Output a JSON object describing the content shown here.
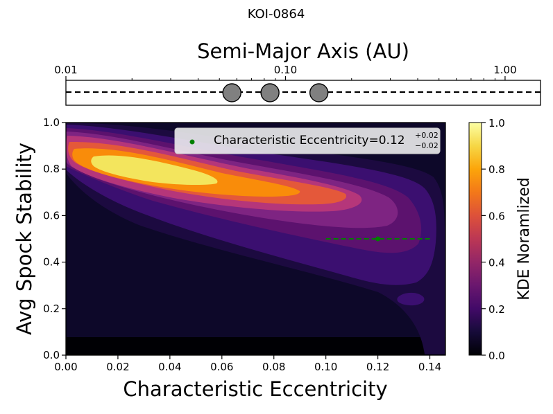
{
  "figure_title": "KOI-0864",
  "chart_data": [
    {
      "type": "scatter",
      "title": "",
      "xlabel": "Semi-Major Axis (AU)",
      "ylabel": "",
      "xscale": "log",
      "xlim": [
        0.01,
        1.45
      ],
      "ylim": [
        -1,
        1
      ],
      "x_axis_position": "top",
      "x_ticks": [
        0.01,
        0.1,
        1.0
      ],
      "x_tick_labels": [
        "0.01",
        "0.10",
        "1.00"
      ],
      "reference_line": {
        "y": 0,
        "style": "dashed",
        "color": "#000000"
      },
      "points": [
        {
          "x": 0.057,
          "y": 0
        },
        {
          "x": 0.085,
          "y": 0
        },
        {
          "x": 0.142,
          "y": 0
        }
      ],
      "marker_color": "#808080"
    },
    {
      "type": "heatmap",
      "title": "",
      "xlabel": "Characteristic Eccentricity",
      "ylabel": "Avg Spock Stability",
      "xlim": [
        0.0,
        0.146
      ],
      "ylim": [
        0.0,
        1.0
      ],
      "x_ticks": [
        0.0,
        0.02,
        0.04,
        0.06,
        0.08,
        0.1,
        0.12,
        0.14
      ],
      "x_tick_labels": [
        "0.00",
        "0.02",
        "0.04",
        "0.06",
        "0.08",
        "0.10",
        "0.12",
        "0.14"
      ],
      "y_ticks": [
        0.0,
        0.2,
        0.4,
        0.6,
        0.8,
        1.0
      ],
      "y_tick_labels": [
        "0.0",
        "0.2",
        "0.4",
        "0.6",
        "0.8",
        "1.0"
      ],
      "colormap": "inferno",
      "colorbar": {
        "label": "KDE Noramlized",
        "range": [
          0.0,
          1.0
        ],
        "ticks": [
          0.0,
          0.2,
          0.4,
          0.6,
          0.8,
          1.0
        ],
        "tick_labels": [
          "0.0",
          "0.2",
          "0.4",
          "0.6",
          "0.8",
          "1.0"
        ]
      },
      "density_peak": {
        "x": 0.04,
        "y": 0.77
      },
      "marker": {
        "x": 0.12,
        "y": 0.5,
        "xerr_minus": 0.02,
        "xerr_plus": 0.02,
        "color": "#008000"
      },
      "legend": {
        "location": "upper right",
        "label_prefix": "Characteristic Eccentricity=0.12",
        "sup": "+0.02",
        "sub": "−0.02"
      }
    }
  ]
}
